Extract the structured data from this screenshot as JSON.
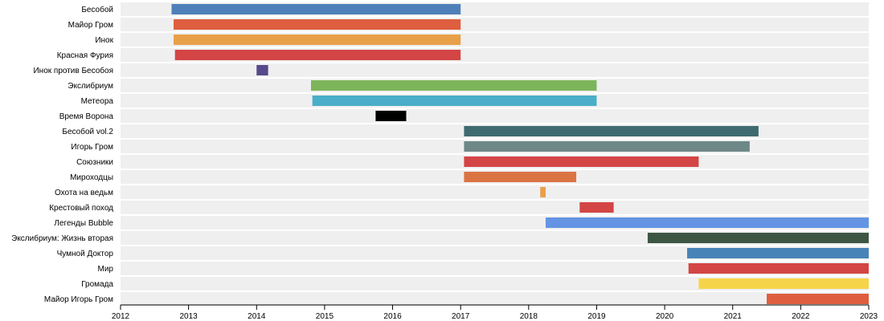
{
  "chart_data": {
    "type": "gantt",
    "title": "",
    "xlabel": "",
    "ylabel": "",
    "xlim": [
      2012,
      2023
    ],
    "x_ticks": [
      "2012",
      "2013",
      "2014",
      "2015",
      "2016",
      "2017",
      "2018",
      "2019",
      "2020",
      "2021",
      "2022",
      "2023"
    ],
    "row_band_color": "#efefef",
    "series": [
      {
        "name": "Бесобой",
        "start": 2012.75,
        "end": 2017.0,
        "color": "#4e7fb9"
      },
      {
        "name": "Майор Гром",
        "start": 2012.78,
        "end": 2017.0,
        "color": "#de5e3f"
      },
      {
        "name": "Инок",
        "start": 2012.78,
        "end": 2017.0,
        "color": "#e8a049"
      },
      {
        "name": "Красная Фурия",
        "start": 2012.8,
        "end": 2017.0,
        "color": "#d44545"
      },
      {
        "name": "Инок против Бесобоя",
        "start": 2014.0,
        "end": 2014.17,
        "color": "#564a8b"
      },
      {
        "name": "Экслибриум",
        "start": 2014.8,
        "end": 2019.0,
        "color": "#7db55a"
      },
      {
        "name": "Метеора",
        "start": 2014.82,
        "end": 2019.0,
        "color": "#4aaec8"
      },
      {
        "name": "Время Ворона",
        "start": 2015.75,
        "end": 2016.2,
        "color": "#000000"
      },
      {
        "name": "Бесобой vol.2",
        "start": 2017.05,
        "end": 2021.38,
        "color": "#3f6b70"
      },
      {
        "name": "Игорь Гром",
        "start": 2017.05,
        "end": 2021.25,
        "color": "#6e8888"
      },
      {
        "name": "Союзники",
        "start": 2017.05,
        "end": 2020.5,
        "color": "#d44545"
      },
      {
        "name": "Мироходцы",
        "start": 2017.05,
        "end": 2018.7,
        "color": "#db7443"
      },
      {
        "name": "Охота на ведьм",
        "start": 2018.17,
        "end": 2018.25,
        "color": "#e8a049"
      },
      {
        "name": "Крестовый поход",
        "start": 2018.75,
        "end": 2019.25,
        "color": "#d44545"
      },
      {
        "name": "Легенды Bubble",
        "start": 2018.25,
        "end": 2023.0,
        "color": "#6494e3"
      },
      {
        "name": "Экслибриум: Жизнь вторая",
        "start": 2019.75,
        "end": 2023.0,
        "color": "#3d5643"
      },
      {
        "name": "Чумной Доктор",
        "start": 2020.33,
        "end": 2023.0,
        "color": "#4883b7"
      },
      {
        "name": "Мир",
        "start": 2020.35,
        "end": 2023.0,
        "color": "#d44545"
      },
      {
        "name": "Громада",
        "start": 2020.5,
        "end": 2023.0,
        "color": "#f6d44a"
      },
      {
        "name": "Майор Игорь Гром",
        "start": 2021.5,
        "end": 2023.0,
        "color": "#de5e3f"
      }
    ]
  }
}
